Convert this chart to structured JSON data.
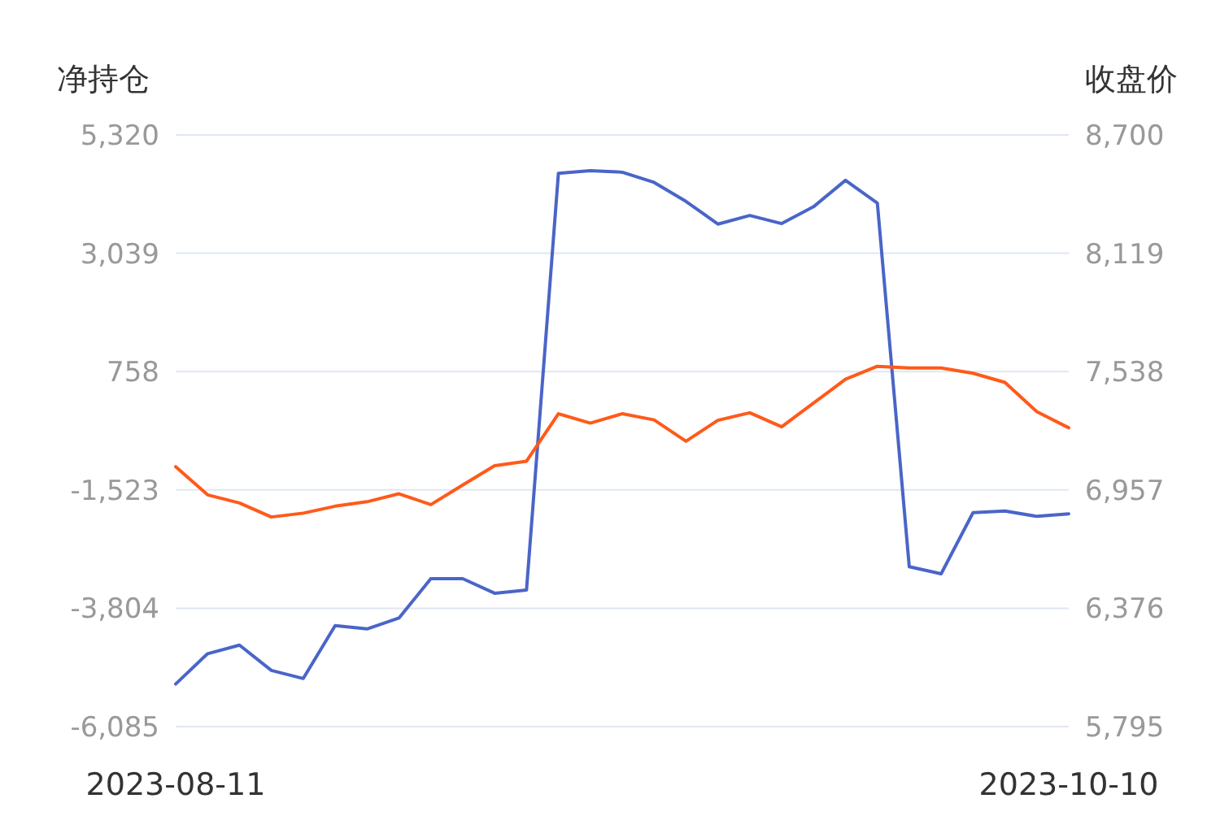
{
  "chart_data": {
    "type": "line",
    "ylabel": "净持仓",
    "y2label": "收盘价",
    "categories": [
      "2023-08-11",
      null,
      null,
      null,
      null,
      null,
      null,
      null,
      null,
      null,
      null,
      null,
      null,
      null,
      null,
      null,
      null,
      null,
      null,
      null,
      null,
      null,
      null,
      null,
      null,
      null,
      null,
      null,
      "2023-10-10"
    ],
    "series": [
      {
        "color": "#4a65c8",
        "values": [
          -5264,
          -4680,
          -4514,
          -5002,
          -5158,
          -4139,
          -4202,
          -3993,
          -3233,
          -3233,
          -3514,
          -3452,
          4579,
          4632,
          4601,
          4404,
          4039,
          3601,
          3767,
          3611,
          3936,
          4445,
          4007,
          -3002,
          -3139,
          -1961,
          -1930,
          -2033,
          -1983
        ]
      },
      {
        "color": "#ff5a1a",
        "axis": "y2",
        "values": [
          7071,
          6933,
          6893,
          6824,
          6843,
          6877,
          6899,
          6938,
          6885,
          6981,
          7076,
          7098,
          7331,
          7285,
          7331,
          7301,
          7196,
          7299,
          7336,
          7267,
          7384,
          7500,
          7564,
          7556,
          7556,
          7530,
          7485,
          7341,
          7262
        ]
      }
    ],
    "ylim": [
      -6085,
      5320
    ],
    "yticks": [
      {
        "value": 5320,
        "label": "5,320"
      },
      {
        "value": 3039,
        "label": "3,039"
      },
      {
        "value": 758,
        "label": "758"
      },
      {
        "value": -1523,
        "label": "-1,523"
      },
      {
        "value": -3804,
        "label": "-3,804"
      },
      {
        "value": -6085,
        "label": "-6,085"
      }
    ],
    "y2lim": [
      5795,
      8700
    ],
    "y2ticks": [
      {
        "value": 8700,
        "label": "8,700"
      },
      {
        "value": 8119,
        "label": "8,119"
      },
      {
        "value": 7538,
        "label": "7,538"
      },
      {
        "value": 6957,
        "label": "6,957"
      },
      {
        "value": 6376,
        "label": "6,376"
      },
      {
        "value": 5795,
        "label": "5,795"
      }
    ],
    "grid": "y"
  }
}
